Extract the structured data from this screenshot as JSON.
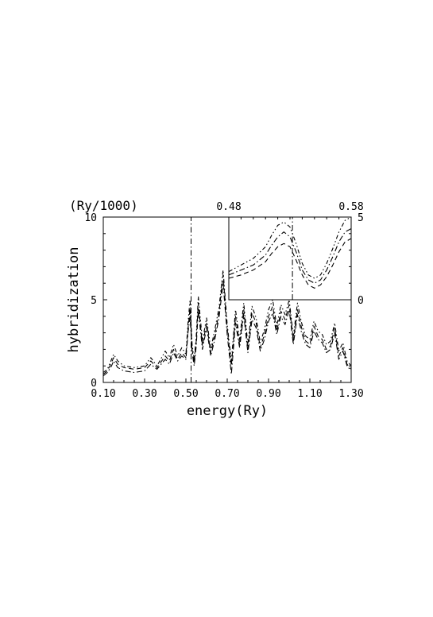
{
  "chart_data": [
    {
      "type": "line",
      "xlabel": "energy(Ry)",
      "ylabel": "hybridization",
      "unit_label": "(Ry/1000)",
      "xlim": [
        0.1,
        1.3
      ],
      "ylim": [
        0,
        10
      ],
      "x_tick_labels": [
        "0.10",
        "0.30",
        "0.50",
        "0.70",
        "0.90",
        "1.10",
        "1.30"
      ],
      "x_tick_values": [
        0.1,
        0.3,
        0.5,
        0.7,
        0.9,
        1.1,
        1.3
      ],
      "y_tick_labels": [
        "0",
        "5",
        "10"
      ],
      "y_tick_values": [
        0,
        5,
        10
      ],
      "line_color": "#000000",
      "vertical_marker_x": 0.525,
      "series": [
        {
          "style": "dashed",
          "x": [
            0.1,
            0.12,
            0.14,
            0.15,
            0.17,
            0.2,
            0.25,
            0.3,
            0.33,
            0.36,
            0.4,
            0.42,
            0.44,
            0.46,
            0.48,
            0.5,
            0.51,
            0.52,
            0.53,
            0.54,
            0.55,
            0.56,
            0.58,
            0.6,
            0.62,
            0.64,
            0.66,
            0.68,
            0.7,
            0.72,
            0.74,
            0.76,
            0.78,
            0.8,
            0.82,
            0.84,
            0.86,
            0.88,
            0.9,
            0.92,
            0.94,
            0.96,
            0.98,
            1.0,
            1.02,
            1.04,
            1.06,
            1.08,
            1.1,
            1.12,
            1.14,
            1.16,
            1.18,
            1.2,
            1.22,
            1.24,
            1.26,
            1.28,
            1.3
          ],
          "y": [
            0.5,
            0.7,
            1.2,
            1.5,
            1.1,
            0.9,
            0.8,
            0.9,
            1.3,
            0.9,
            1.6,
            1.3,
            2.0,
            1.4,
            1.8,
            1.5,
            3.2,
            4.5,
            2.0,
            1.2,
            2.5,
            4.8,
            2.2,
            3.6,
            1.8,
            2.9,
            4.2,
            6.5,
            3.2,
            1.0,
            4.0,
            2.3,
            4.4,
            2.0,
            4.2,
            3.6,
            2.1,
            2.9,
            4.0,
            4.6,
            3.1,
            4.3,
            3.8,
            4.7,
            2.5,
            4.4,
            3.3,
            2.5,
            2.3,
            3.4,
            2.8,
            2.6,
            2.0,
            2.2,
            3.3,
            1.6,
            2.1,
            1.1,
            0.8
          ]
        },
        {
          "style": "dash-dot",
          "x": [
            0.1,
            0.12,
            0.14,
            0.15,
            0.17,
            0.2,
            0.25,
            0.3,
            0.33,
            0.36,
            0.4,
            0.42,
            0.44,
            0.46,
            0.48,
            0.5,
            0.51,
            0.52,
            0.53,
            0.54,
            0.55,
            0.56,
            0.58,
            0.6,
            0.62,
            0.64,
            0.66,
            0.68,
            0.7,
            0.72,
            0.74,
            0.76,
            0.78,
            0.8,
            0.82,
            0.84,
            0.86,
            0.88,
            0.9,
            0.92,
            0.94,
            0.96,
            0.98,
            1.0,
            1.02,
            1.04,
            1.06,
            1.08,
            1.1,
            1.12,
            1.14,
            1.16,
            1.18,
            1.2,
            1.22,
            1.24,
            1.26,
            1.28,
            1.3
          ],
          "y": [
            0.4,
            0.6,
            1.0,
            1.3,
            0.9,
            0.7,
            0.6,
            0.7,
            1.1,
            0.8,
            1.4,
            1.1,
            1.8,
            1.3,
            1.6,
            1.4,
            3.0,
            4.0,
            1.8,
            1.0,
            2.2,
            4.4,
            2.0,
            3.3,
            1.6,
            2.6,
            3.9,
            6.0,
            2.9,
            0.5,
            3.6,
            2.1,
            4.1,
            1.8,
            3.8,
            3.3,
            1.9,
            2.6,
            3.7,
            4.2,
            2.9,
            4.0,
            3.5,
            4.4,
            2.3,
            4.1,
            3.0,
            2.3,
            2.1,
            3.1,
            2.6,
            2.4,
            1.8,
            2.0,
            3.0,
            1.4,
            1.9,
            1.0,
            0.7
          ]
        },
        {
          "style": "dash-dot-dot",
          "x": [
            0.1,
            0.12,
            0.14,
            0.15,
            0.17,
            0.2,
            0.25,
            0.3,
            0.33,
            0.36,
            0.4,
            0.42,
            0.44,
            0.46,
            0.48,
            0.5,
            0.51,
            0.52,
            0.53,
            0.54,
            0.55,
            0.56,
            0.58,
            0.6,
            0.62,
            0.64,
            0.66,
            0.68,
            0.7,
            0.72,
            0.74,
            0.76,
            0.78,
            0.8,
            0.82,
            0.84,
            0.86,
            0.88,
            0.9,
            0.92,
            0.94,
            0.96,
            0.98,
            1.0,
            1.02,
            1.04,
            1.06,
            1.08,
            1.1,
            1.12,
            1.14,
            1.16,
            1.18,
            1.2,
            1.22,
            1.24,
            1.26,
            1.28,
            1.3
          ],
          "y": [
            0.6,
            0.8,
            1.4,
            1.7,
            1.3,
            1.0,
            0.9,
            1.0,
            1.5,
            1.0,
            1.9,
            1.5,
            2.3,
            1.6,
            2.1,
            1.7,
            3.6,
            5.0,
            2.3,
            1.4,
            2.8,
            5.2,
            2.5,
            3.9,
            2.0,
            3.2,
            4.5,
            6.8,
            3.5,
            1.3,
            4.4,
            2.6,
            4.8,
            2.3,
            4.6,
            3.9,
            2.4,
            3.2,
            4.4,
            5.0,
            3.4,
            4.7,
            4.1,
            5.0,
            2.8,
            4.8,
            3.6,
            2.8,
            2.6,
            3.7,
            3.1,
            2.9,
            2.3,
            2.5,
            3.6,
            1.9,
            2.4,
            1.3,
            1.0
          ]
        }
      ]
    },
    {
      "type": "line",
      "role": "inset",
      "xlim": [
        0.48,
        0.58
      ],
      "ylim": [
        0,
        5
      ],
      "x_tick_labels": [
        "0.48",
        "0.58"
      ],
      "x_tick_values": [
        0.48,
        0.58
      ],
      "y_tick_labels": [
        "0",
        "5"
      ],
      "y_tick_values": [
        0,
        5
      ],
      "vertical_marker_x": 0.532,
      "series": [
        {
          "style": "dashed",
          "x": [
            0.48,
            0.49,
            0.5,
            0.51,
            0.515,
            0.52,
            0.525,
            0.53,
            0.535,
            0.54,
            0.545,
            0.55,
            0.555,
            0.56,
            0.565,
            0.57,
            0.575,
            0.58
          ],
          "y": [
            1.3,
            1.5,
            1.8,
            2.3,
            2.8,
            3.2,
            3.4,
            3.2,
            2.4,
            1.5,
            0.9,
            0.7,
            0.9,
            1.4,
            2.1,
            2.9,
            3.5,
            3.7
          ]
        },
        {
          "style": "dash-dot",
          "x": [
            0.48,
            0.49,
            0.5,
            0.51,
            0.515,
            0.52,
            0.525,
            0.53,
            0.535,
            0.54,
            0.545,
            0.55,
            0.555,
            0.56,
            0.565,
            0.57,
            0.575,
            0.58
          ],
          "y": [
            1.5,
            1.8,
            2.1,
            2.7,
            3.3,
            3.8,
            4.1,
            3.8,
            2.9,
            1.8,
            1.2,
            1.0,
            1.2,
            1.8,
            2.6,
            3.5,
            4.1,
            4.3
          ]
        },
        {
          "style": "dash-dot-dot",
          "x": [
            0.48,
            0.49,
            0.5,
            0.51,
            0.515,
            0.52,
            0.525,
            0.53,
            0.535,
            0.54,
            0.545,
            0.55,
            0.555,
            0.56,
            0.565,
            0.57,
            0.575,
            0.58
          ],
          "y": [
            1.7,
            2.1,
            2.5,
            3.2,
            3.9,
            4.5,
            4.7,
            4.4,
            3.4,
            2.2,
            1.5,
            1.3,
            1.5,
            2.2,
            3.1,
            4.1,
            4.8,
            5.0
          ]
        }
      ]
    }
  ]
}
